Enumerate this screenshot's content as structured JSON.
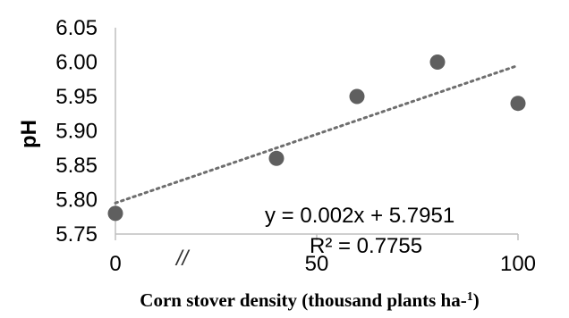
{
  "chart_data": {
    "type": "scatter",
    "title": "",
    "xlabel": "Corn stover density (thousand plants ha-",
    "xlabel_superscript": "1",
    "xlabel_suffix": ")",
    "ylabel": "pH",
    "xlim": [
      0,
      100
    ],
    "ylim": [
      5.75,
      6.05
    ],
    "x_ticks": [
      "0",
      "50",
      "100"
    ],
    "x_tick_values": [
      0,
      50,
      100
    ],
    "y_ticks": [
      "5.75",
      "5.80",
      "5.85",
      "5.90",
      "5.95",
      "6.00",
      "6.05"
    ],
    "y_tick_values": [
      5.75,
      5.8,
      5.85,
      5.9,
      5.95,
      6.0,
      6.05
    ],
    "axis_break_mark": "//",
    "grid": false,
    "point_color": "#5f5f5f",
    "trendline_color": "#6e6e6e",
    "series": [
      {
        "x": [
          0,
          40,
          60,
          80,
          100
        ],
        "y": [
          5.78,
          5.86,
          5.95,
          6.0,
          5.94
        ]
      }
    ],
    "trendline": {
      "slope": 0.002,
      "intercept": 5.7951,
      "equation": "y = 0.002x + 5.7951",
      "r_squared": "R² = 0.7755"
    }
  }
}
